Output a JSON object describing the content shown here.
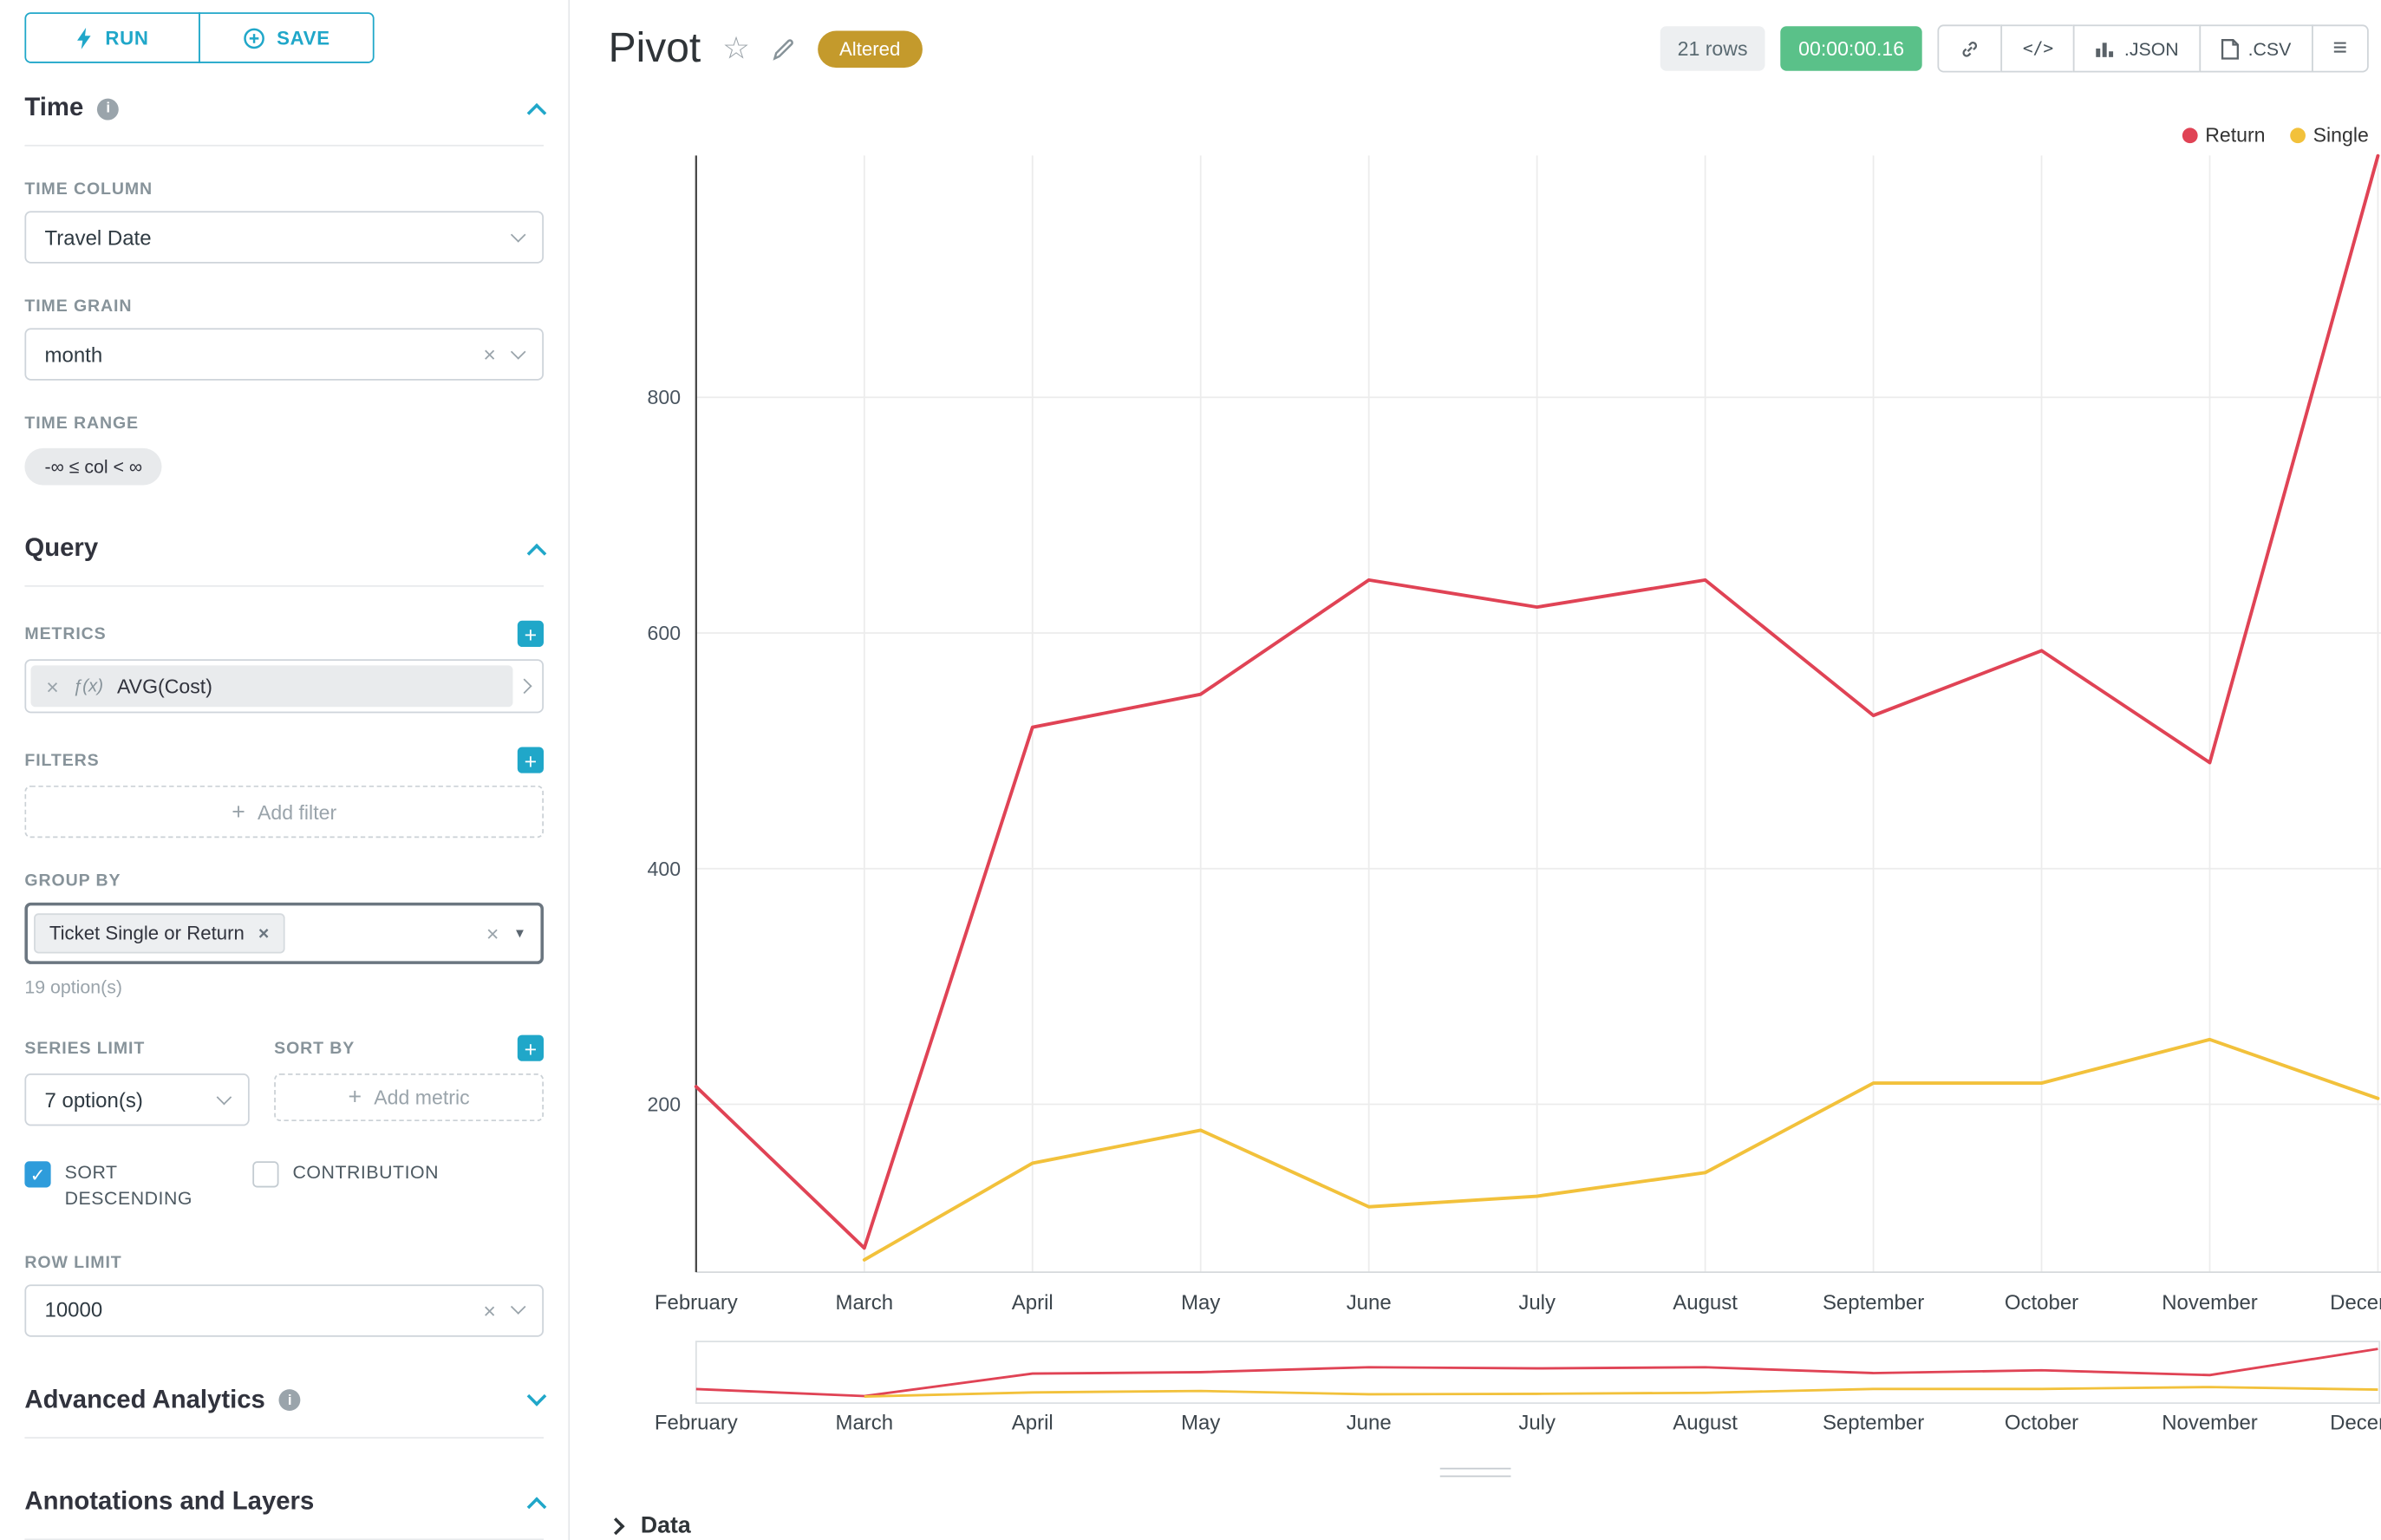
{
  "colors": {
    "accent_teal": "#20A7C9",
    "altered_gold": "#C49A2C",
    "timer_green": "#5AC189",
    "checkbox_blue": "#2E9CDB",
    "series_return": "#E04355",
    "series_single": "#F2C13B"
  },
  "toolbar": {
    "run": "RUN",
    "save": "SAVE"
  },
  "time_section": {
    "title": "Time",
    "time_column_label": "TIME COLUMN",
    "time_column_value": "Travel Date",
    "time_grain_label": "TIME GRAIN",
    "time_grain_value": "month",
    "time_range_label": "TIME RANGE",
    "time_range_value": "-∞ ≤ col < ∞"
  },
  "query_section": {
    "title": "Query",
    "metrics_label": "METRICS",
    "metric_fx": "ƒ(x)",
    "metric_value": "AVG(Cost)",
    "filters_label": "FILTERS",
    "add_filter": "Add filter",
    "group_by_label": "GROUP BY",
    "group_by_value": "Ticket Single or Return",
    "group_by_hint": "19 option(s)",
    "series_limit_label": "SERIES LIMIT",
    "series_limit_value": "7 option(s)",
    "sort_by_label": "SORT BY",
    "add_metric": "Add metric",
    "sort_descending": "SORT DESCENDING",
    "contribution": "CONTRIBUTION",
    "row_limit_label": "ROW LIMIT",
    "row_limit_value": "10000"
  },
  "advanced_section": {
    "title": "Advanced Analytics"
  },
  "annotations_section": {
    "title": "Annotations and Layers"
  },
  "header": {
    "title": "Pivot",
    "altered": "Altered",
    "rows": "21 rows",
    "timer": "00:00:00.16",
    "code_label": "</>",
    "json": ".JSON",
    "csv": ".CSV"
  },
  "data_panel": {
    "title": "Data"
  },
  "chart_data": {
    "type": "line",
    "title": "",
    "x": [
      "February",
      "March",
      "April",
      "May",
      "June",
      "July",
      "August",
      "September",
      "October",
      "November",
      "December"
    ],
    "series": [
      {
        "name": "Return",
        "color": "#E04355",
        "values": [
          215,
          78,
          520,
          548,
          645,
          622,
          645,
          530,
          585,
          490,
          1005
        ]
      },
      {
        "name": "Single",
        "color": "#F2C13B",
        "values": [
          null,
          68,
          150,
          178,
          113,
          122,
          142,
          218,
          218,
          255,
          205
        ]
      }
    ],
    "yticks": [
      200,
      400,
      600,
      800
    ],
    "ylim": [
      25,
      1030
    ],
    "xlabel": "",
    "ylabel": "",
    "grid": true,
    "legend_position": "top-right",
    "has_brush_minimap": true
  }
}
